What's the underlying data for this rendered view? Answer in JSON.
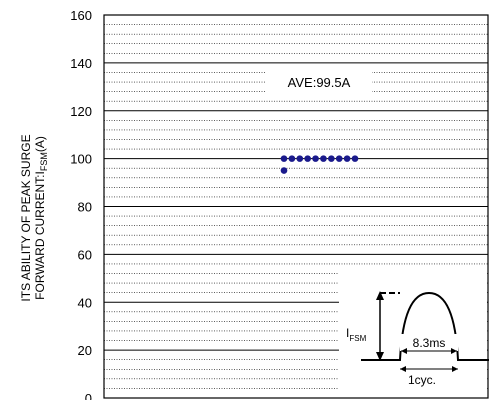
{
  "chart_data": {
    "type": "scatter",
    "title": "",
    "xlabel": "",
    "ylabel": {
      "line1": "ITS ABILITY OF PEAK SURGE",
      "line2_prefix": "FORWARD CURRENT:I",
      "line2_sub": "FSM",
      "line2_suffix": "(A)"
    },
    "ylim": [
      0,
      160
    ],
    "yticks": [
      "0",
      "20",
      "40",
      "60",
      "80",
      "100",
      "120",
      "140",
      "160"
    ],
    "grid": true,
    "points": [
      {
        "x": 1,
        "y": 95
      },
      {
        "x": 1,
        "y": 100
      },
      {
        "x": 2,
        "y": 100
      },
      {
        "x": 3,
        "y": 100
      },
      {
        "x": 4,
        "y": 100
      },
      {
        "x": 5,
        "y": 100
      },
      {
        "x": 6,
        "y": 100
      },
      {
        "x": 7,
        "y": 100
      },
      {
        "x": 8,
        "y": 100
      },
      {
        "x": 9,
        "y": 100
      },
      {
        "x": 10,
        "y": 100
      }
    ],
    "annotation": "AVE:99.5A",
    "marker_color": "#1a1a8c",
    "inset": {
      "ifsm_prefix": "I",
      "ifsm_sub": "FSM",
      "duration": "8.3ms",
      "cycle": "1cyc."
    }
  }
}
